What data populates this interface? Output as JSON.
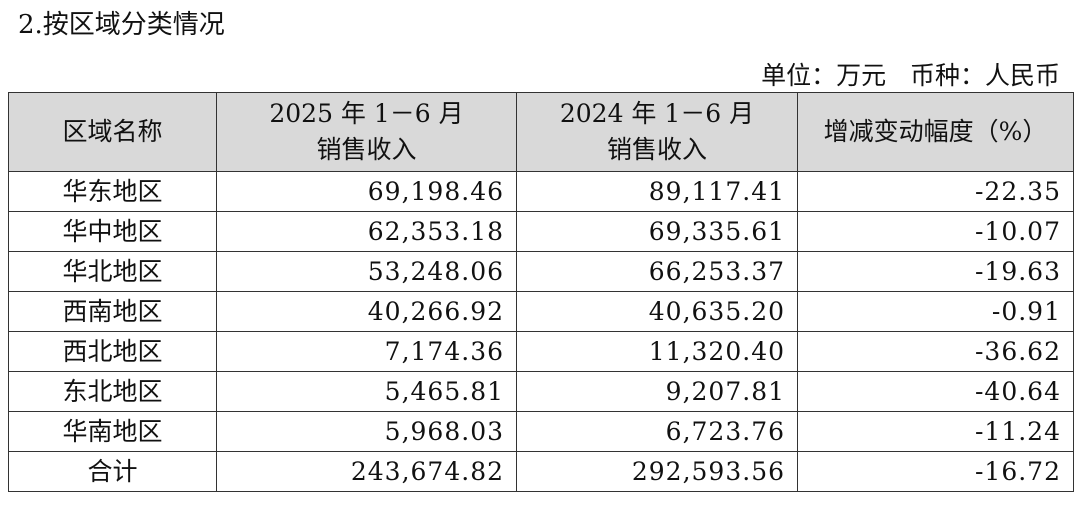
{
  "header": {
    "title": "2.按区域分类情况",
    "unit": "单位：万元   币种：人民币"
  },
  "table": {
    "columns": [
      [
        "区域名称"
      ],
      [
        "2025 年 1－6 月",
        "销售收入"
      ],
      [
        "2024 年 1－6 月",
        "销售收入"
      ],
      [
        "增减变动幅度（%）"
      ]
    ],
    "rows": [
      [
        "华东地区",
        "69,198.46",
        "89,117.41",
        "-22.35"
      ],
      [
        "华中地区",
        "62,353.18",
        "69,335.61",
        "-10.07"
      ],
      [
        "华北地区",
        "53,248.06",
        "66,253.37",
        "-19.63"
      ],
      [
        "西南地区",
        "40,266.92",
        "40,635.20",
        "-0.91"
      ],
      [
        "西北地区",
        "7,174.36",
        "11,320.40",
        "-36.62"
      ],
      [
        "东北地区",
        "5,465.81",
        "9,207.81",
        "-40.64"
      ],
      [
        "华南地区",
        "5,968.03",
        "6,723.76",
        "-11.24"
      ],
      [
        "合计",
        "243,674.82",
        "292,593.56",
        "-16.72"
      ]
    ]
  }
}
